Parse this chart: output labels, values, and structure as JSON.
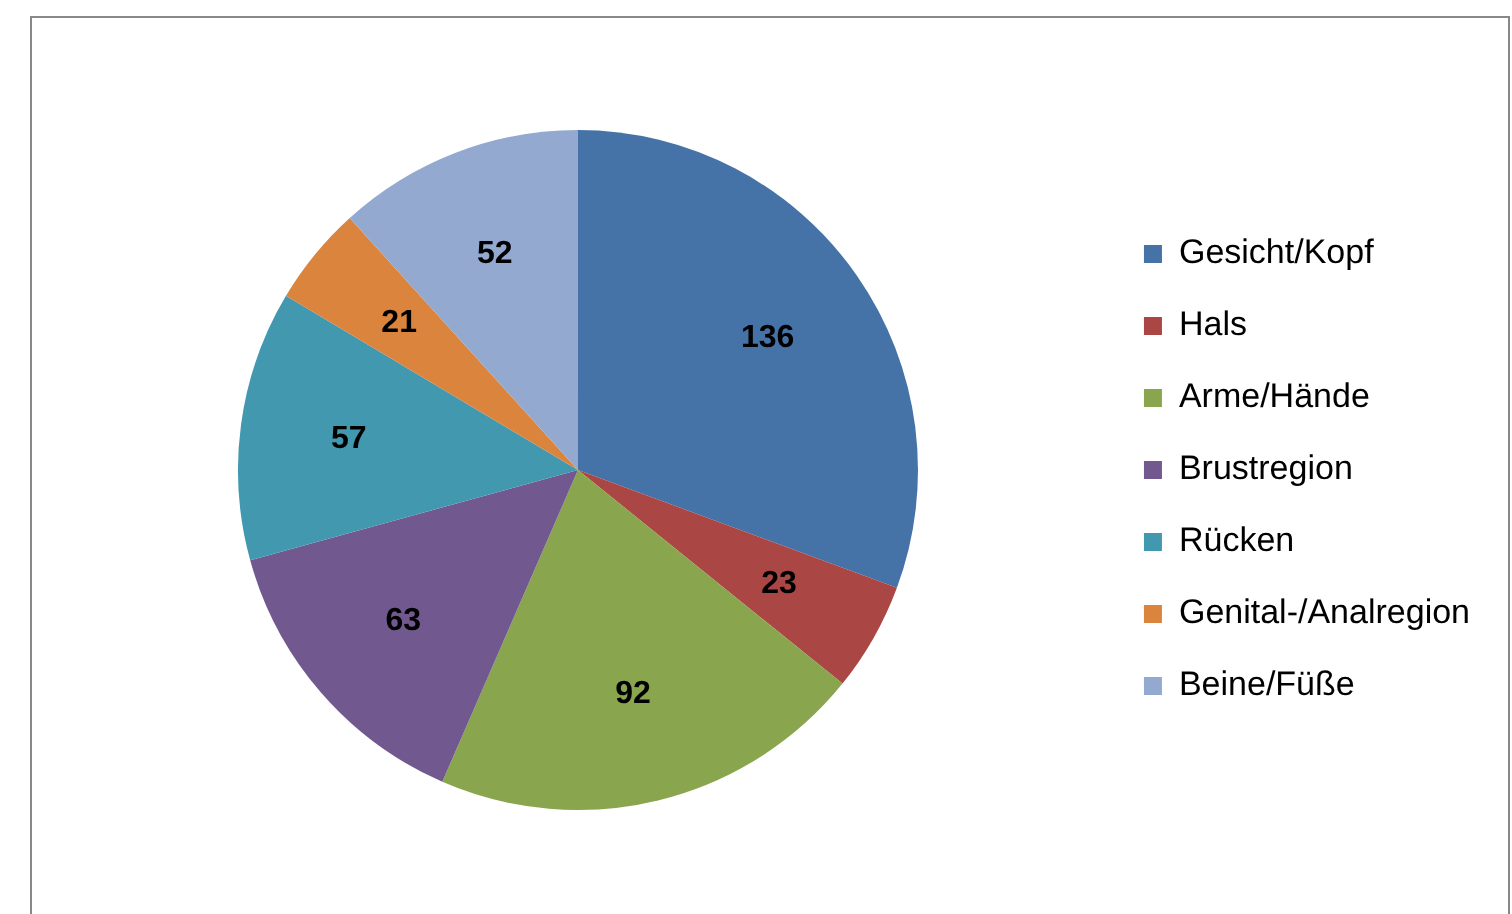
{
  "chart_data": {
    "type": "pie",
    "categories": [
      "Gesicht/Kopf",
      "Hals",
      "Arme/Hände",
      "Brustregion",
      "Rücken",
      "Genital-/Analregion",
      "Beine/Füße"
    ],
    "values": [
      136,
      23,
      92,
      63,
      57,
      21,
      52
    ],
    "colors": [
      "#4572a7",
      "#aa4643",
      "#89a54e",
      "#71588f",
      "#4198af",
      "#db843d",
      "#93a9cf"
    ],
    "data_labels": true,
    "legend": "right"
  }
}
